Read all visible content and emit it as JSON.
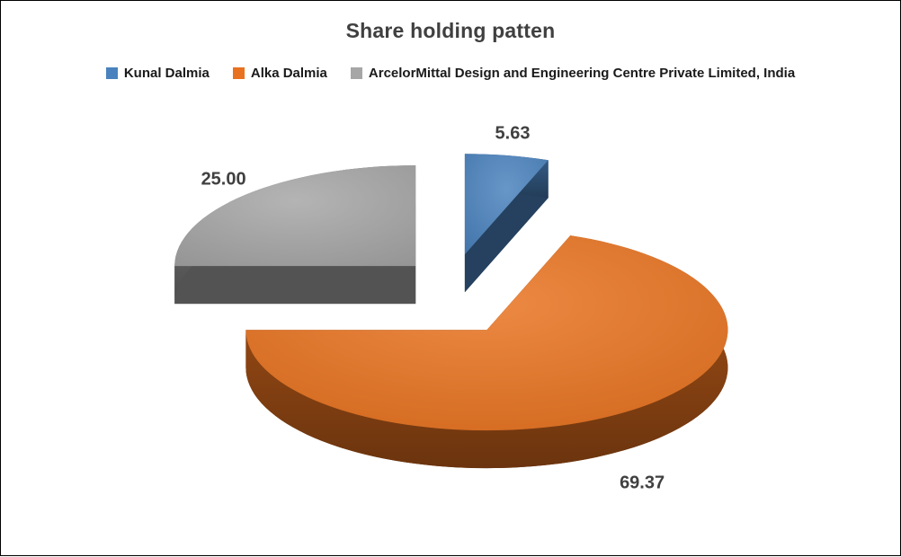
{
  "frame": {
    "background": "#ffffff",
    "border_color": "#000000"
  },
  "chart_data": {
    "type": "pie",
    "title": "Share holding patten",
    "labels": [
      "Kunal Dalmia",
      "Alka Dalmia",
      "ArcelorMittal Design and Engineering Centre Private Limited, India"
    ],
    "values": [
      5.63,
      69.37,
      25.0
    ],
    "data_labels": [
      "5.63",
      "69.37",
      "25.00"
    ],
    "colors": [
      "#4A82BE",
      "#E8721F",
      "#A6A6A6"
    ],
    "legend_position": "top",
    "start_angle_deg": 0,
    "direction": "clockwise",
    "style": {
      "effect": "3d",
      "exploded": true,
      "title_color": "#404040",
      "label_color": "#404040",
      "legend_text_color": "#1a1a1a"
    }
  }
}
